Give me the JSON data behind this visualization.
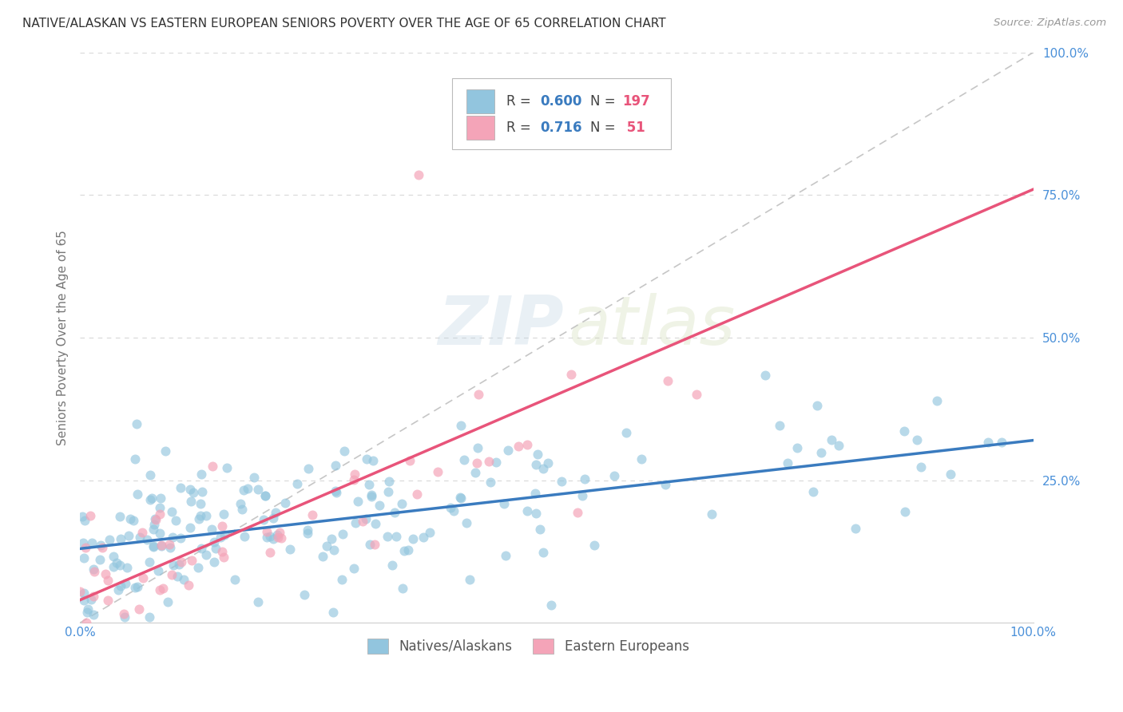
{
  "title": "NATIVE/ALASKAN VS EASTERN EUROPEAN SENIORS POVERTY OVER THE AGE OF 65 CORRELATION CHART",
  "source": "Source: ZipAtlas.com",
  "ylabel": "Seniors Poverty Over the Age of 65",
  "watermark_zip": "ZIP",
  "watermark_atlas": "atlas",
  "legend_labels": [
    "Natives/Alaskans",
    "Eastern Europeans"
  ],
  "r_native": 0.6,
  "n_native": 197,
  "r_eastern": 0.716,
  "n_eastern": 51,
  "blue_scatter_color": "#92c5de",
  "pink_scatter_color": "#f4a4b8",
  "blue_line_color": "#3a7bbf",
  "pink_line_color": "#e8547a",
  "dashed_line_color": "#c0c0c0",
  "title_color": "#333333",
  "source_color": "#999999",
  "r_label_color": "#555555",
  "r_value_color": "#3a7bbf",
  "n_value_color": "#e8547a",
  "background_color": "#ffffff",
  "grid_color": "#d8d8d8",
  "axis_tick_color": "#4a90d9",
  "ylabel_color": "#777777"
}
